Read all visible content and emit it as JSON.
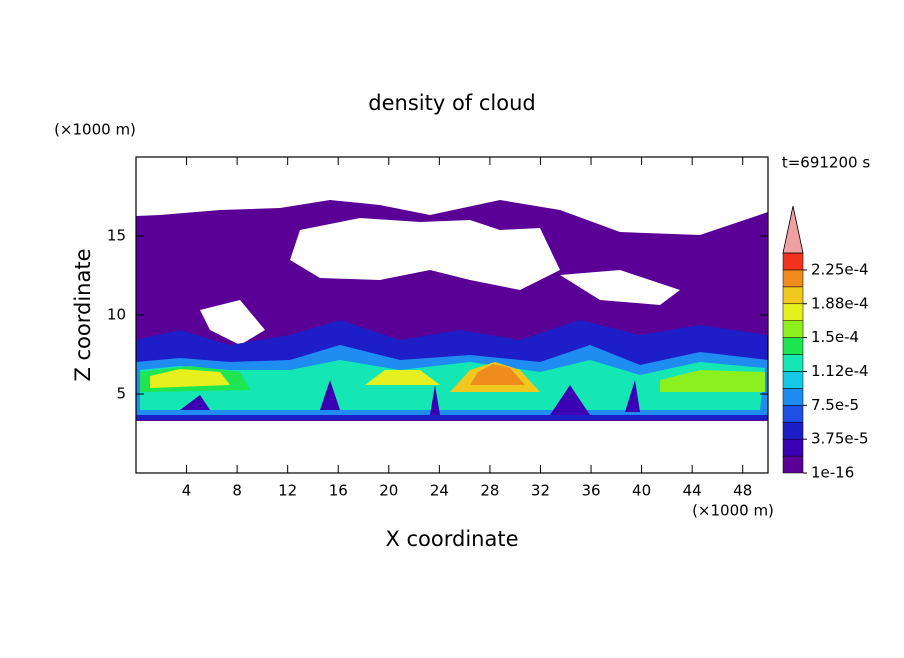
{
  "chart_data": {
    "type": "contour",
    "title": "density of cloud",
    "xlabel": "X coordinate",
    "ylabel": "Z coordinate",
    "xunit": "(×1000 m)",
    "yunit": "(×1000 m)",
    "annotation": "t=691200 s",
    "xlim": [
      0,
      50
    ],
    "xticks": [
      4,
      8,
      12,
      16,
      20,
      24,
      28,
      32,
      36,
      40,
      44,
      48
    ],
    "ylim": [
      0,
      20
    ],
    "yticks": [
      5,
      10,
      15
    ],
    "colorbar": {
      "lim": [
        1e-16,
        0.00024375
      ],
      "ticks": [
        {
          "value": 1e-16,
          "label": "1e-16"
        },
        {
          "value": 3.75e-05,
          "label": "3.75e-5"
        },
        {
          "value": 7.5e-05,
          "label": "7.5e-5"
        },
        {
          "value": 0.0001125,
          "label": "1.12e-4"
        },
        {
          "value": 0.00015,
          "label": "1.5e-4"
        },
        {
          "value": 0.0001875,
          "label": "1.88e-4"
        },
        {
          "value": 0.000225,
          "label": "2.25e-4"
        }
      ],
      "colors": [
        "#5a0096",
        "#3c00b4",
        "#1e1ec8",
        "#1e50e6",
        "#1e8cf0",
        "#14c8e6",
        "#14e6b4",
        "#1ee650",
        "#8cf01e",
        "#e6f01e",
        "#f0c81e",
        "#f08c1e",
        "#f0321e"
      ],
      "extend_color": "#f0a0a0"
    }
  }
}
